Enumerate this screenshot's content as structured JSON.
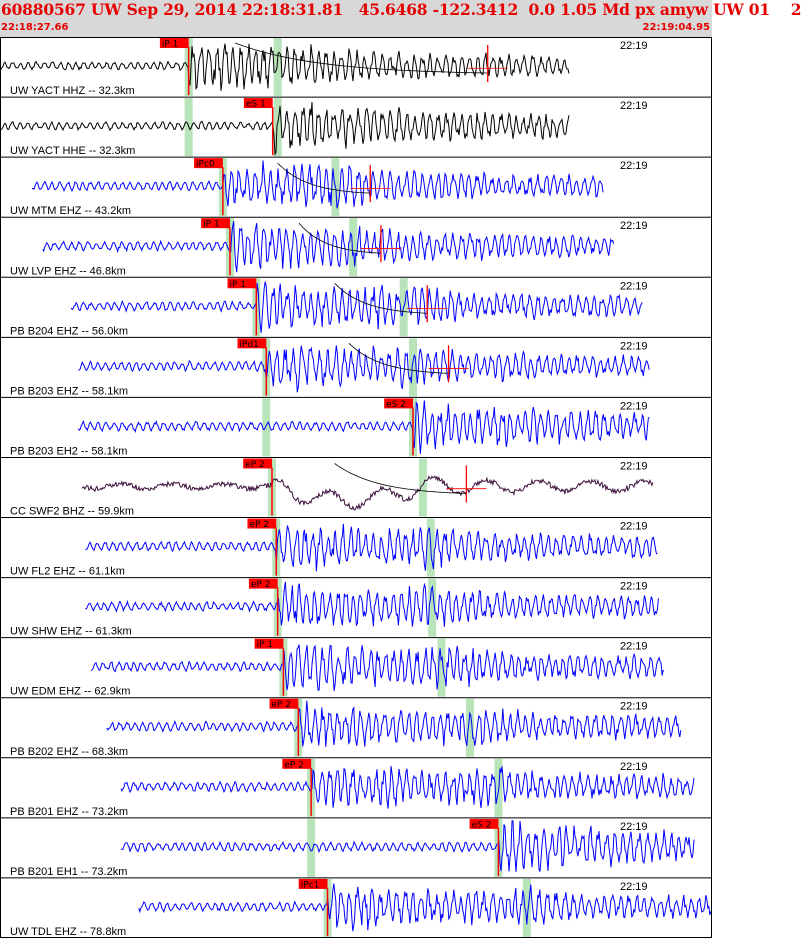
{
  "header": {
    "title": "60880567 UW Sep 29, 2014 22:18:31.81   45.6468 -122.3412  0.0 1.05 Md px amyw UW 01    2",
    "start_time": "22:18:27.66",
    "end_time": "22:19:04.95"
  },
  "colors": {
    "header_text": "#e60000",
    "header_bg": "#d8d8d8",
    "trace_blue": "#0000ff",
    "trace_black": "#000000",
    "trace_purple": "#3a0f3a",
    "pick": "#ff0000",
    "pick_window": "#b9e3b9",
    "frame": "#000000"
  },
  "chart_data": {
    "type": "line",
    "time_window": [
      "22:18:27.66",
      "22:19:04.95"
    ],
    "series": [
      {
        "label": "UW YACT HHZ -- 32.3km",
        "time_tick": "22:19",
        "color": "black",
        "start_x": 0.0,
        "end_x": 0.8,
        "picks": [
          {
            "label": "iP 1",
            "x": 0.265
          }
        ],
        "windows": [
          0.265,
          0.39
        ],
        "coda": {
          "from": 0.33,
          "to": 0.685
        }
      },
      {
        "label": "UW YACT HHE -- 32.3km",
        "time_tick": "22:19",
        "color": "black",
        "start_x": 0.0,
        "end_x": 0.8,
        "picks": [
          {
            "label": "eS 1",
            "x": 0.383
          }
        ],
        "windows": [
          0.265,
          0.39
        ],
        "coda": null
      },
      {
        "label": "UW MTM EHZ -- 43.2km",
        "time_tick": "22:19",
        "color": "blue",
        "start_x": 0.045,
        "end_x": 0.848,
        "picks": [
          {
            "label": "iPc0",
            "x": 0.313
          }
        ],
        "windows": [
          0.313,
          0.471
        ],
        "coda": {
          "from": 0.39,
          "to": 0.52
        }
      },
      {
        "label": "UW LVP EHZ -- 46.8km",
        "time_tick": "22:19",
        "color": "blue",
        "start_x": 0.06,
        "end_x": 0.863,
        "picks": [
          {
            "label": "iP 1",
            "x": 0.323
          }
        ],
        "windows": [
          0.323,
          0.496
        ],
        "coda": {
          "from": 0.42,
          "to": 0.535
        }
      },
      {
        "label": "PB B204 EHZ -- 56.0km",
        "time_tick": "22:19",
        "color": "blue",
        "start_x": 0.1,
        "end_x": 0.902,
        "picks": [
          {
            "label": "iP 1",
            "x": 0.36
          }
        ],
        "windows": [
          0.36,
          0.567
        ],
        "coda": {
          "from": 0.47,
          "to": 0.6
        }
      },
      {
        "label": "PB B203 EHZ -- 58.1km",
        "time_tick": "22:19",
        "color": "blue",
        "start_x": 0.11,
        "end_x": 0.912,
        "picks": [
          {
            "label": "iPd1",
            "x": 0.374
          }
        ],
        "windows": [
          0.374,
          0.58
        ],
        "coda": {
          "from": 0.49,
          "to": 0.63
        }
      },
      {
        "label": "PB B203 EH2 -- 58.1km",
        "time_tick": "22:19",
        "color": "blue",
        "start_x": 0.11,
        "end_x": 0.912,
        "picks": [
          {
            "label": "eS 2",
            "x": 0.58
          }
        ],
        "windows": [
          0.374,
          0.58
        ],
        "coda": null
      },
      {
        "label": "CC SWF2 BHZ -- 59.9km",
        "time_tick": "22:19",
        "color": "purple",
        "start_x": 0.115,
        "end_x": 0.918,
        "picks": [
          {
            "label": "eP 2",
            "x": 0.382
          }
        ],
        "windows": [
          0.382,
          0.594
        ],
        "coda": {
          "from": 0.47,
          "to": 0.655
        }
      },
      {
        "label": "UW FL2 EHZ -- 61.1km",
        "time_tick": "22:19",
        "color": "blue",
        "start_x": 0.12,
        "end_x": 0.924,
        "picks": [
          {
            "label": "eP 2",
            "x": 0.388
          }
        ],
        "windows": [
          0.388,
          0.605
        ],
        "coda": null
      },
      {
        "label": "UW SHW EHZ -- 61.3km",
        "time_tick": "22:19",
        "color": "blue",
        "start_x": 0.12,
        "end_x": 0.926,
        "picks": [
          {
            "label": "eP 2",
            "x": 0.39
          }
        ],
        "windows": [
          0.39,
          0.607
        ],
        "coda": null
      },
      {
        "label": "UW EDM EHZ -- 62.9km",
        "time_tick": "22:19",
        "color": "blue",
        "start_x": 0.128,
        "end_x": 0.933,
        "picks": [
          {
            "label": "iP 1",
            "x": 0.398
          }
        ],
        "windows": [
          0.398,
          0.62
        ],
        "coda": null
      },
      {
        "label": "PB B202 EHZ -- 68.3km",
        "time_tick": "22:19",
        "color": "blue",
        "start_x": 0.15,
        "end_x": 0.957,
        "picks": [
          {
            "label": "eP 2",
            "x": 0.419
          }
        ],
        "windows": [
          0.419,
          0.66
        ],
        "coda": null
      },
      {
        "label": "PB B201 EHZ -- 73.2km",
        "time_tick": "22:19",
        "color": "blue",
        "start_x": 0.17,
        "end_x": 0.976,
        "picks": [
          {
            "label": "eP 2",
            "x": 0.437
          }
        ],
        "windows": [
          0.437,
          0.7
        ],
        "coda": null
      },
      {
        "label": "PB B201 EH1 -- 73.2km",
        "time_tick": "22:19",
        "color": "blue",
        "start_x": 0.17,
        "end_x": 0.976,
        "picks": [
          {
            "label": "eS 2",
            "x": 0.7
          }
        ],
        "windows": [
          0.437,
          0.7
        ],
        "coda": null
      },
      {
        "label": "UW TDL EHZ -- 78.8km",
        "time_tick": "22:19",
        "color": "blue",
        "start_x": 0.195,
        "end_x": 1.0,
        "picks": [
          {
            "label": "iPc1",
            "x": 0.46
          }
        ],
        "windows": [
          0.46,
          0.74
        ],
        "coda": null
      }
    ]
  }
}
